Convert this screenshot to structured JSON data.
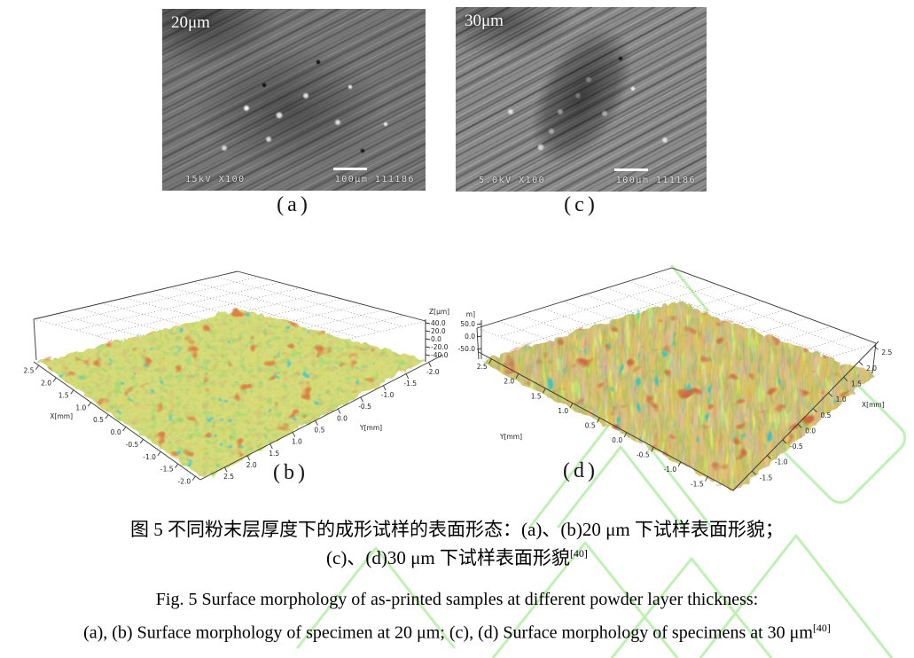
{
  "page": {
    "background": "#ffffff",
    "watermark_color": "#b7f0ab"
  },
  "figure": {
    "sem_panels": [
      {
        "id": "a",
        "overlay_label": "20μm",
        "meta_left": "15kV X100",
        "meta_right": "100μm 111186",
        "panel_label": "(a)"
      },
      {
        "id": "c",
        "overlay_label": "30μm",
        "meta_left": "5.0kV X100",
        "meta_right": "100μm 111186",
        "panel_label": "(c)"
      }
    ],
    "surface_panels": [
      {
        "id": "b",
        "panel_label": "(b)"
      },
      {
        "id": "d",
        "panel_label": "(d)"
      }
    ]
  },
  "chart_data": [
    {
      "type": "heatmap",
      "subtype": "3d-surface-topography",
      "panel": "(b)",
      "xlabel": "X[mm]",
      "ylabel": "Y[mm]",
      "zlabel": "Z[μm]",
      "x_ticks": [
        "2.5",
        "2.0",
        "1.5",
        "1.0",
        "0.5",
        "0.0",
        "-0.5",
        "-1.0",
        "-1.5",
        "-2.0"
      ],
      "y_ticks": [
        "2.5",
        "2.0",
        "1.5",
        "1.0",
        "0.5",
        "0.0",
        "-0.5",
        "-1.0",
        "-1.5",
        "-2.0"
      ],
      "z_ticks": [
        "40.0",
        "20.0",
        "0.0",
        "-20.0",
        "-40.0"
      ],
      "x_range_mm": [
        -2.0,
        2.5
      ],
      "y_range_mm": [
        -2.0,
        2.5
      ],
      "z_range_um": [
        -40,
        40
      ],
      "grid": true,
      "legend": false,
      "appearance": "mostly flat green surface with scattered sharp orange-red peaks"
    },
    {
      "type": "heatmap",
      "subtype": "3d-surface-topography",
      "panel": "(d)",
      "xlabel": "X[mm]",
      "ylabel": "Y[mm]",
      "zlabel": "m]",
      "x_ticks": [
        "-1.5",
        "-1.0",
        "-0.5",
        "0.0",
        "0.5",
        "1.0",
        "1.5",
        "2.0",
        "2.5"
      ],
      "y_ticks": [
        "2.5",
        "2.0",
        "1.5",
        "1.0",
        "0.5",
        "0.0",
        "-0.5",
        "-1.0",
        "-1.5"
      ],
      "z_ticks": [
        "50.0",
        "0.0",
        "-50.0"
      ],
      "x_range_mm": [
        -1.5,
        2.5
      ],
      "y_range_mm": [
        -1.5,
        2.5
      ],
      "z_range_um": [
        -50,
        50
      ],
      "grid": true,
      "legend": false,
      "appearance": "rough ridged yellow-brown surface with red-brown and cyan patches"
    }
  ],
  "captions": {
    "zh_line1": "图 5 不同粉末层厚度下的成形试样的表面形态：(a)、(b)20 μm 下试样表面形貌；",
    "zh_line2": "(c)、(d)30 μm 下试样表面形貌",
    "en_line1": "Fig. 5 Surface morphology of as-printed samples at different powder layer thickness:",
    "en_line2": "(a), (b) Surface morphology of specimen at 20 μm; (c), (d) Surface morphology of specimens at 30 μm",
    "ref": "[40]"
  }
}
